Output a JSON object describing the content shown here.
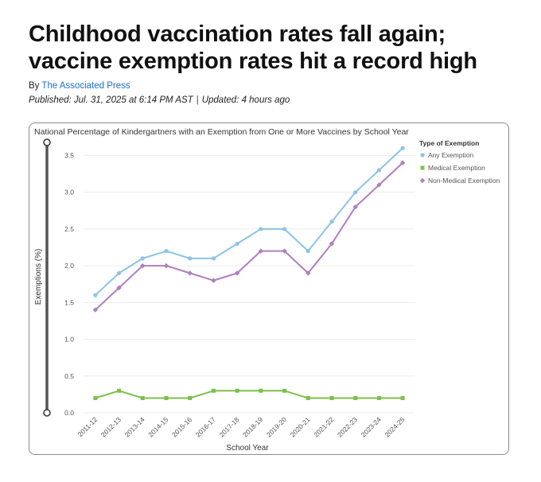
{
  "article": {
    "headline": "Childhood vaccination rates fall again; vaccine exemption rates hit a record high",
    "by_prefix": "By",
    "author": "The Associated Press",
    "published": "Published: Jul. 31, 2025 at 6:14 PM AST",
    "separator": "|",
    "updated": "Updated: 4 hours ago"
  },
  "chart_data": {
    "type": "line",
    "title": "National Percentage of Kindergartners with an Exemption from One or More Vaccines by School Year",
    "xlabel": "School Year",
    "ylabel": "Exemptions (%)",
    "ylim": [
      0,
      3.7
    ],
    "yticks": [
      "0.0",
      "0.5",
      "1.0",
      "1.5",
      "2.0",
      "2.5",
      "3.0",
      "3.5"
    ],
    "categories": [
      "2011-12",
      "2012-13",
      "2013-14",
      "2014-15",
      "2015-16",
      "2016-17",
      "2017-18",
      "2018-19",
      "2019-20",
      "2020-21",
      "2021-22",
      "2022-23",
      "2023-24",
      "2024-25"
    ],
    "legend_title": "Type of Exemption",
    "series": [
      {
        "name": "Any Exemption",
        "color": "#8dc3e6",
        "marker": "circle",
        "values": [
          1.6,
          1.9,
          2.1,
          2.2,
          2.1,
          2.1,
          2.3,
          2.5,
          2.5,
          2.2,
          2.6,
          3.0,
          3.3,
          3.6
        ]
      },
      {
        "name": "Medical Exemption",
        "color": "#7cc04a",
        "marker": "square",
        "values": [
          0.2,
          0.3,
          0.2,
          0.2,
          0.2,
          0.3,
          0.3,
          0.3,
          0.3,
          0.2,
          0.2,
          0.2,
          0.2,
          0.2
        ]
      },
      {
        "name": "Non-Medical Exemption",
        "color": "#b07fbf",
        "marker": "diamond",
        "values": [
          1.4,
          1.7,
          2.0,
          2.0,
          1.9,
          1.8,
          1.9,
          2.2,
          2.2,
          1.9,
          2.3,
          2.8,
          3.1,
          3.4
        ]
      }
    ]
  }
}
